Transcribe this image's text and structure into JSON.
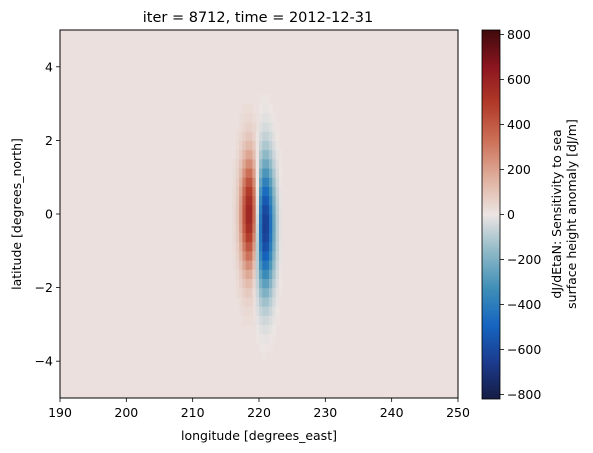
{
  "chart_data": {
    "type": "heatmap",
    "title": "iter = 8712, time = 2012-12-31",
    "xlabel": "longitude [degrees_east]",
    "ylabel": "latitude [degrees_north]",
    "xlim": [
      190,
      250
    ],
    "ylim": [
      -5,
      5
    ],
    "xticks": [
      190,
      200,
      210,
      220,
      230,
      240,
      250
    ],
    "yticks": [
      -4,
      -2,
      0,
      2,
      4
    ],
    "colorbar": {
      "label_lines": [
        "dJ/dEtaN: Sensitivity to sea",
        "surface height anomaly [dJ/m]"
      ],
      "range": [
        -820,
        820
      ],
      "ticks": [
        -800,
        -600,
        -400,
        -200,
        0,
        200,
        400,
        600,
        800
      ],
      "colormap": "balance",
      "stops": [
        "#161c44",
        "#1b3b8e",
        "#1565c0",
        "#3f8fb8",
        "#8fb9c7",
        "#ece5e3",
        "#dfae9c",
        "#cc7058",
        "#b13a29",
        "#8c1520",
        "#3e0a0b"
      ]
    },
    "background_value": 15,
    "features": [
      {
        "name": "positive lobe",
        "lon": 218.6,
        "lat": 0.0,
        "peak": 620,
        "lon_sigma": 0.9,
        "lat_sigma": 1.05
      },
      {
        "name": "negative lobe",
        "lon": 220.9,
        "lat": -0.3,
        "peak": -700,
        "lon_sigma": 0.95,
        "lat_sigma": 1.2
      }
    ]
  },
  "colors": {
    "frame": "#000000",
    "background": "#ffffff"
  }
}
